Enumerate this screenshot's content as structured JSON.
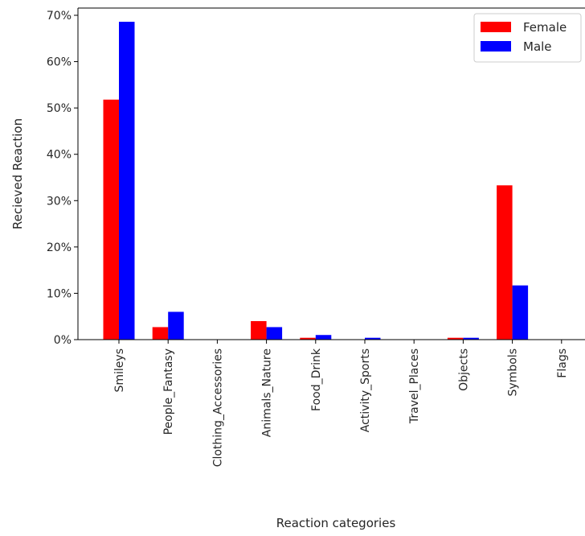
{
  "chart_data": {
    "type": "bar",
    "title": "",
    "xlabel": "Reaction categories",
    "ylabel": "Recieved Reaction",
    "categories": [
      "Smileys",
      "People_Fantasy",
      "Clothing_Accessories",
      "Animals_Nature",
      "Food_Drink",
      "Activity_Sports",
      "Travel_Places",
      "Objects",
      "Symbols",
      "Flags"
    ],
    "series": [
      {
        "name": "Female",
        "color": "#ff0000",
        "values": [
          51.8,
          2.7,
          0,
          4.0,
          0.4,
          0,
          0,
          0.4,
          33.3,
          0
        ]
      },
      {
        "name": "Male",
        "color": "#0000ff",
        "values": [
          68.6,
          6.0,
          0,
          2.7,
          1.0,
          0.4,
          0,
          0.4,
          11.7,
          0
        ]
      }
    ],
    "ylim": [
      0,
      70
    ],
    "yticks": [
      0,
      10,
      20,
      30,
      40,
      50,
      60,
      70
    ],
    "ytick_format": "percent",
    "grid": false,
    "legend_position": "top-right"
  }
}
